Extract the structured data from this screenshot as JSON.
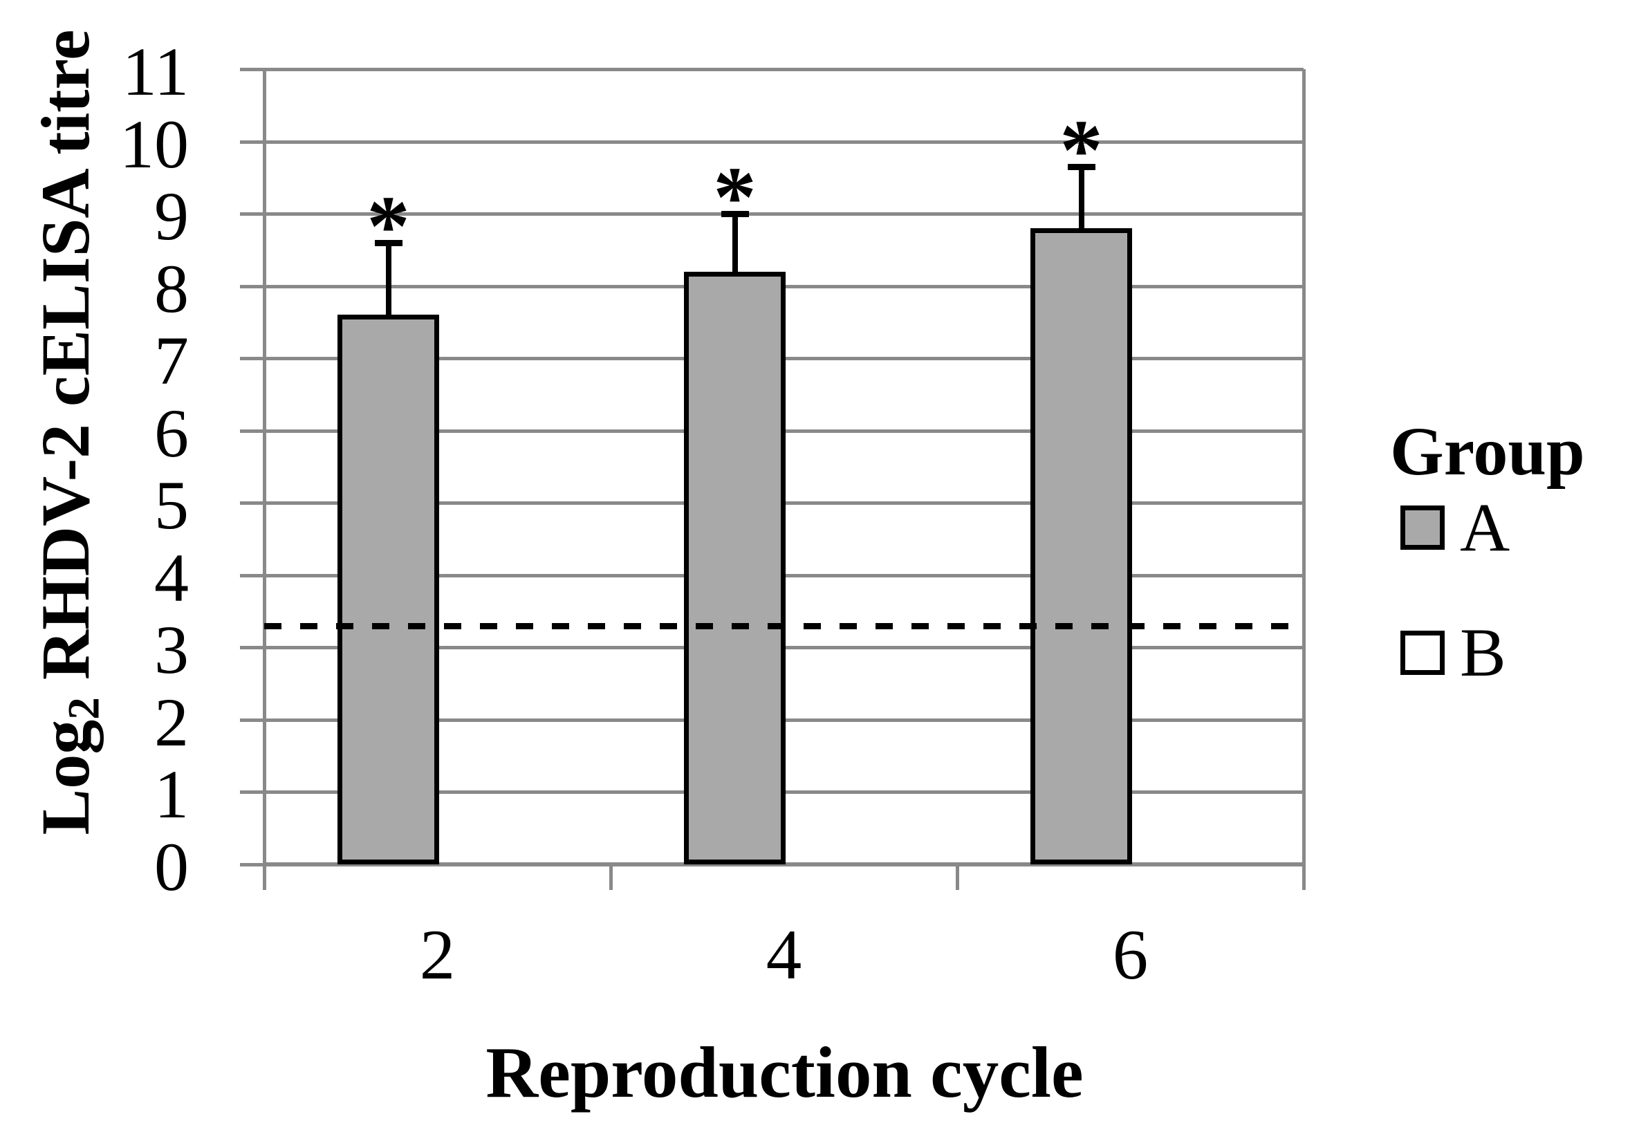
{
  "chart_data": {
    "type": "bar",
    "title": "",
    "xlabel": "Reproduction cycle",
    "ylabel": "Log2 RHDV-2 cELISA titre",
    "ylabel_parts": {
      "base": "Log",
      "sub": "2",
      "rest": " RHDV-2 cELISA titre"
    },
    "categories": [
      "2",
      "4",
      "6"
    ],
    "ylim": [
      0,
      11
    ],
    "yticks": [
      0,
      1,
      2,
      3,
      4,
      5,
      6,
      7,
      8,
      9,
      10,
      11
    ],
    "grid": true,
    "legend_position": "right",
    "series": [
      {
        "name": "A",
        "fill": "#A9A9A9",
        "border": "#000000",
        "values": [
          7.6,
          8.2,
          8.8
        ],
        "error_plus": [
          1.0,
          0.8,
          0.85
        ],
        "sig_markers": [
          "*",
          "*",
          "*"
        ]
      }
    ],
    "legend": {
      "title": "Group",
      "entries": [
        {
          "label": "A",
          "fill": "#A9A9A9"
        },
        {
          "label": "B",
          "fill": "#FFFFFF"
        }
      ]
    },
    "reference_line": {
      "value": 3.3,
      "style": "dashed",
      "color": "#000000"
    },
    "colors": {
      "axis": "#898989",
      "grid": "#898989",
      "error_bar": "#000000",
      "background": "#FFFFFF"
    }
  }
}
